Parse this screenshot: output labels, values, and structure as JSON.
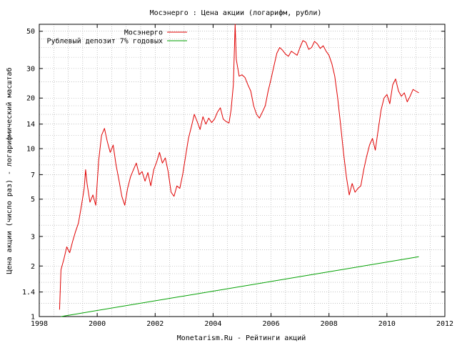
{
  "chart_data": {
    "type": "line",
    "title": "Мосэнерго : Цена акции (логарифм, рубли)",
    "xlabel": "Monetarism.Ru - Рейтинги акций",
    "ylabel": "Цена акции (число раз) - логарифмический масштаб",
    "x_scale": "linear",
    "y_scale": "log",
    "xlim": [
      1998,
      2012
    ],
    "ylim": [
      1,
      55
    ],
    "x_ticks": [
      1998,
      2000,
      2002,
      2004,
      2006,
      2008,
      2010,
      2012
    ],
    "x_tick_labels": [
      "1998",
      "2000",
      "2002",
      "2004",
      "2006",
      "2008",
      "2010",
      "2012"
    ],
    "y_ticks": [
      1,
      1.4,
      2,
      3,
      5,
      7,
      10,
      14,
      20,
      30,
      50
    ],
    "y_tick_labels": [
      "1",
      "1.4",
      "2",
      "3",
      "5",
      "7",
      "10",
      "14",
      "20",
      "30",
      "50"
    ],
    "grid": true,
    "legend_position": "top-left",
    "series": [
      {
        "name": "Мосэнерго",
        "color": "#e00000",
        "points": [
          [
            1998.7,
            1.1
          ],
          [
            1998.75,
            1.9
          ],
          [
            1998.85,
            2.2
          ],
          [
            1998.95,
            2.6
          ],
          [
            1999.05,
            2.4
          ],
          [
            1999.15,
            2.8
          ],
          [
            1999.25,
            3.2
          ],
          [
            1999.35,
            3.6
          ],
          [
            1999.45,
            4.5
          ],
          [
            1999.55,
            5.8
          ],
          [
            1999.6,
            7.5
          ],
          [
            1999.65,
            6.2
          ],
          [
            1999.75,
            4.8
          ],
          [
            1999.85,
            5.3
          ],
          [
            1999.95,
            4.6
          ],
          [
            2000.05,
            8.5
          ],
          [
            2000.15,
            12.0
          ],
          [
            2000.25,
            13.2
          ],
          [
            2000.35,
            11.0
          ],
          [
            2000.45,
            9.5
          ],
          [
            2000.55,
            10.5
          ],
          [
            2000.65,
            8.0
          ],
          [
            2000.75,
            6.5
          ],
          [
            2000.85,
            5.2
          ],
          [
            2000.95,
            4.6
          ],
          [
            2001.05,
            5.8
          ],
          [
            2001.15,
            6.8
          ],
          [
            2001.25,
            7.5
          ],
          [
            2001.35,
            8.2
          ],
          [
            2001.45,
            7.0
          ],
          [
            2001.55,
            7.3
          ],
          [
            2001.65,
            6.4
          ],
          [
            2001.75,
            7.2
          ],
          [
            2001.85,
            6.0
          ],
          [
            2001.95,
            7.5
          ],
          [
            2002.05,
            8.3
          ],
          [
            2002.15,
            9.5
          ],
          [
            2002.25,
            8.2
          ],
          [
            2002.35,
            8.8
          ],
          [
            2002.45,
            7.3
          ],
          [
            2002.55,
            5.5
          ],
          [
            2002.65,
            5.2
          ],
          [
            2002.75,
            6.0
          ],
          [
            2002.85,
            5.8
          ],
          [
            2002.95,
            7.0
          ],
          [
            2003.05,
            9.0
          ],
          [
            2003.15,
            11.5
          ],
          [
            2003.25,
            13.5
          ],
          [
            2003.35,
            16.0
          ],
          [
            2003.45,
            14.5
          ],
          [
            2003.55,
            13.0
          ],
          [
            2003.65,
            15.5
          ],
          [
            2003.75,
            14.0
          ],
          [
            2003.85,
            15.2
          ],
          [
            2003.95,
            14.3
          ],
          [
            2004.05,
            15.0
          ],
          [
            2004.15,
            16.5
          ],
          [
            2004.25,
            17.5
          ],
          [
            2004.35,
            15.0
          ],
          [
            2004.45,
            14.5
          ],
          [
            2004.55,
            14.2
          ],
          [
            2004.62,
            17.0
          ],
          [
            2004.7,
            24.0
          ],
          [
            2004.76,
            55.0
          ],
          [
            2004.8,
            34.0
          ],
          [
            2004.9,
            27.0
          ],
          [
            2005.0,
            27.5
          ],
          [
            2005.1,
            26.5
          ],
          [
            2005.2,
            24.0
          ],
          [
            2005.3,
            22.0
          ],
          [
            2005.4,
            18.0
          ],
          [
            2005.5,
            16.0
          ],
          [
            2005.6,
            15.2
          ],
          [
            2005.7,
            16.5
          ],
          [
            2005.8,
            18.0
          ],
          [
            2005.9,
            22.0
          ],
          [
            2006.0,
            26.0
          ],
          [
            2006.1,
            31.0
          ],
          [
            2006.2,
            37.0
          ],
          [
            2006.3,
            40.0
          ],
          [
            2006.4,
            38.5
          ],
          [
            2006.5,
            36.5
          ],
          [
            2006.6,
            35.5
          ],
          [
            2006.7,
            38.0
          ],
          [
            2006.8,
            37.0
          ],
          [
            2006.9,
            36.0
          ],
          [
            2007.0,
            40.0
          ],
          [
            2007.1,
            44.0
          ],
          [
            2007.2,
            43.0
          ],
          [
            2007.3,
            39.0
          ],
          [
            2007.4,
            40.0
          ],
          [
            2007.5,
            43.5
          ],
          [
            2007.6,
            42.0
          ],
          [
            2007.7,
            39.5
          ],
          [
            2007.8,
            41.0
          ],
          [
            2007.9,
            38.0
          ],
          [
            2008.0,
            36.0
          ],
          [
            2008.1,
            32.0
          ],
          [
            2008.2,
            27.0
          ],
          [
            2008.3,
            20.0
          ],
          [
            2008.4,
            14.0
          ],
          [
            2008.5,
            9.5
          ],
          [
            2008.6,
            6.8
          ],
          [
            2008.7,
            5.3
          ],
          [
            2008.8,
            6.2
          ],
          [
            2008.9,
            5.5
          ],
          [
            2009.0,
            5.8
          ],
          [
            2009.1,
            6.0
          ],
          [
            2009.2,
            7.5
          ],
          [
            2009.3,
            9.0
          ],
          [
            2009.4,
            10.5
          ],
          [
            2009.5,
            11.5
          ],
          [
            2009.6,
            9.8
          ],
          [
            2009.7,
            13.0
          ],
          [
            2009.8,
            17.0
          ],
          [
            2009.9,
            20.0
          ],
          [
            2010.0,
            21.0
          ],
          [
            2010.1,
            18.5
          ],
          [
            2010.2,
            24.0
          ],
          [
            2010.3,
            26.0
          ],
          [
            2010.4,
            22.0
          ],
          [
            2010.5,
            20.5
          ],
          [
            2010.6,
            21.5
          ],
          [
            2010.7,
            19.0
          ],
          [
            2010.8,
            20.5
          ],
          [
            2010.9,
            22.5
          ],
          [
            2011.0,
            22.0
          ],
          [
            2011.1,
            21.5
          ]
        ]
      },
      {
        "name": "Рублевый депозит 7% годовых",
        "color": "#00a000",
        "points": [
          [
            1998.75,
            1.0
          ],
          [
            2011.1,
            2.27
          ]
        ]
      }
    ]
  }
}
